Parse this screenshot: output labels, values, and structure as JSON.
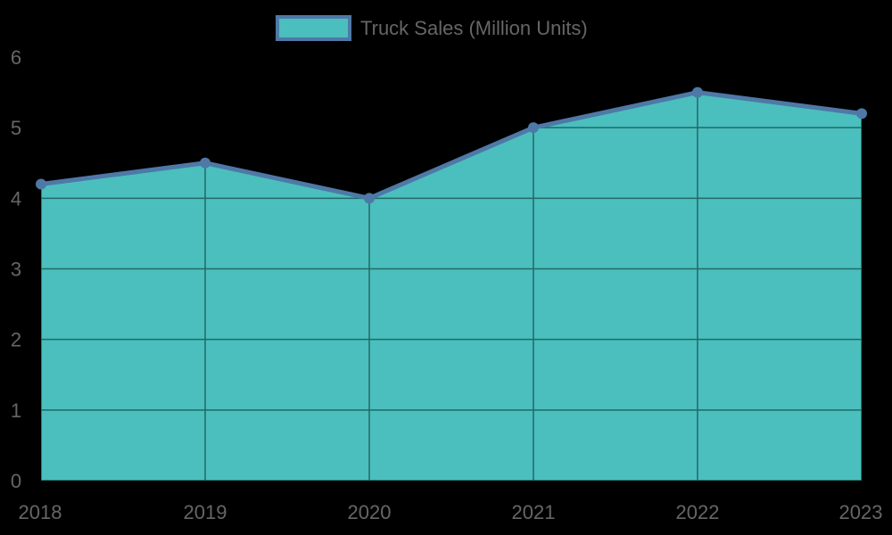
{
  "chart_data": {
    "type": "area",
    "title": "",
    "categories": [
      "2018",
      "2019",
      "2020",
      "2021",
      "2022",
      "2023"
    ],
    "series": [
      {
        "name": "Truck Sales (Million Units)",
        "values": [
          4.2,
          4.5,
          4.0,
          5.0,
          5.5,
          5.2
        ]
      }
    ],
    "xlabel": "",
    "ylabel": "",
    "ylim": [
      0,
      6
    ],
    "yticks": [
      "0",
      "1",
      "2",
      "3",
      "4",
      "5",
      "6"
    ],
    "grid": true,
    "legend_position": "top"
  },
  "legend": {
    "label": "Truck Sales (Million Units)"
  },
  "colors": {
    "fill": "#4bbfbd",
    "line": "#4e79a7",
    "grid": "#1f6a66",
    "text": "#666666",
    "background": "#000000"
  }
}
